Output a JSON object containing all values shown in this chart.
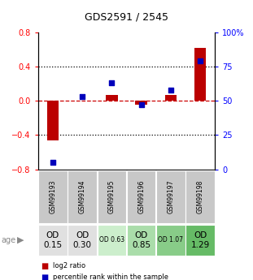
{
  "title": "GDS2591 / 2545",
  "samples": [
    "GSM99193",
    "GSM99194",
    "GSM99195",
    "GSM99196",
    "GSM99197",
    "GSM99198"
  ],
  "log2_ratio": [
    -0.46,
    0.0,
    0.07,
    -0.05,
    0.07,
    0.62
  ],
  "percentile_rank": [
    5,
    53,
    63,
    47,
    58,
    79
  ],
  "ylim_left": [
    -0.8,
    0.8
  ],
  "ylim_right": [
    0,
    100
  ],
  "yticks_left": [
    -0.8,
    -0.4,
    0.0,
    0.4,
    0.8
  ],
  "yticks_right": [
    0,
    25,
    50,
    75,
    100
  ],
  "ytick_labels_right": [
    "0",
    "25",
    "50",
    "75",
    "100%"
  ],
  "bar_color": "#bb0000",
  "dot_color": "#0000bb",
  "hline_color": "#cc0000",
  "dotted_color": "#000000",
  "age_labels": [
    "OD\n0.15",
    "OD\n0.30",
    "OD 0.63",
    "OD\n0.85",
    "OD 1.07",
    "OD\n1.29"
  ],
  "age_fontsize_big": [
    true,
    true,
    false,
    true,
    false,
    true
  ],
  "age_bg_colors": [
    "#e0e0e0",
    "#e0e0e0",
    "#cceecc",
    "#aaddaa",
    "#88cc88",
    "#66bb66"
  ],
  "sample_bg_color": "#c8c8c8",
  "legend_items": [
    "log2 ratio",
    "percentile rank within the sample"
  ],
  "legend_colors": [
    "#bb0000",
    "#0000bb"
  ],
  "row_label": "age"
}
